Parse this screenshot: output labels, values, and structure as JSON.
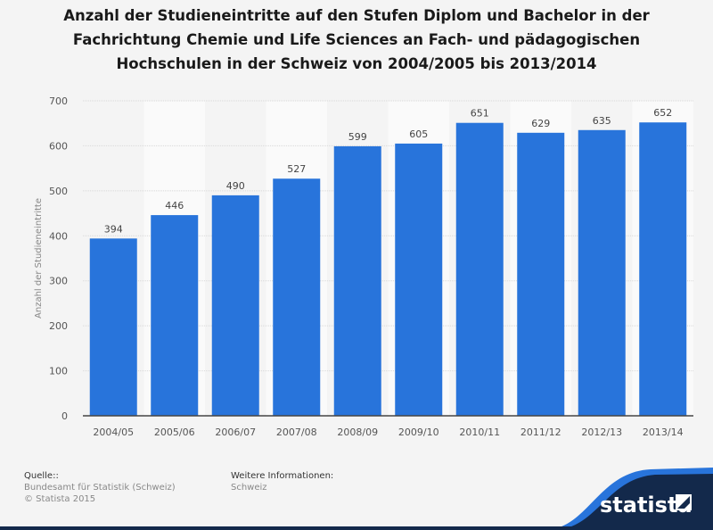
{
  "chart_data": {
    "type": "bar",
    "title": "Anzahl der Studieneintritte auf den Stufen Diplom und Bachelor in der Fachrichtung Chemie und Life Sciences an Fach- und pädagogischen Hochschulen in der Schweiz von 2004/2005 bis 2013/2014",
    "categories": [
      "2004/05",
      "2005/06",
      "2006/07",
      "2007/08",
      "2008/09",
      "2009/10",
      "2010/11",
      "2011/12",
      "2012/13",
      "2013/14"
    ],
    "values": [
      394,
      446,
      490,
      527,
      599,
      605,
      651,
      629,
      635,
      652
    ],
    "xlabel": "",
    "ylabel": "Anzahl der Studieneintritte",
    "ylim": [
      0,
      700
    ],
    "yticks": [
      0,
      100,
      200,
      300,
      400,
      500,
      600,
      700
    ],
    "grid": true,
    "bar_color": "#2874db"
  },
  "footer": {
    "source_label": "Quelle::",
    "source": "Bundesamt für Statistik (Schweiz)",
    "copyright": "© Statista 2015",
    "info_label": "Weitere Informationen:",
    "info": "Schweiz"
  },
  "brand": "statista"
}
